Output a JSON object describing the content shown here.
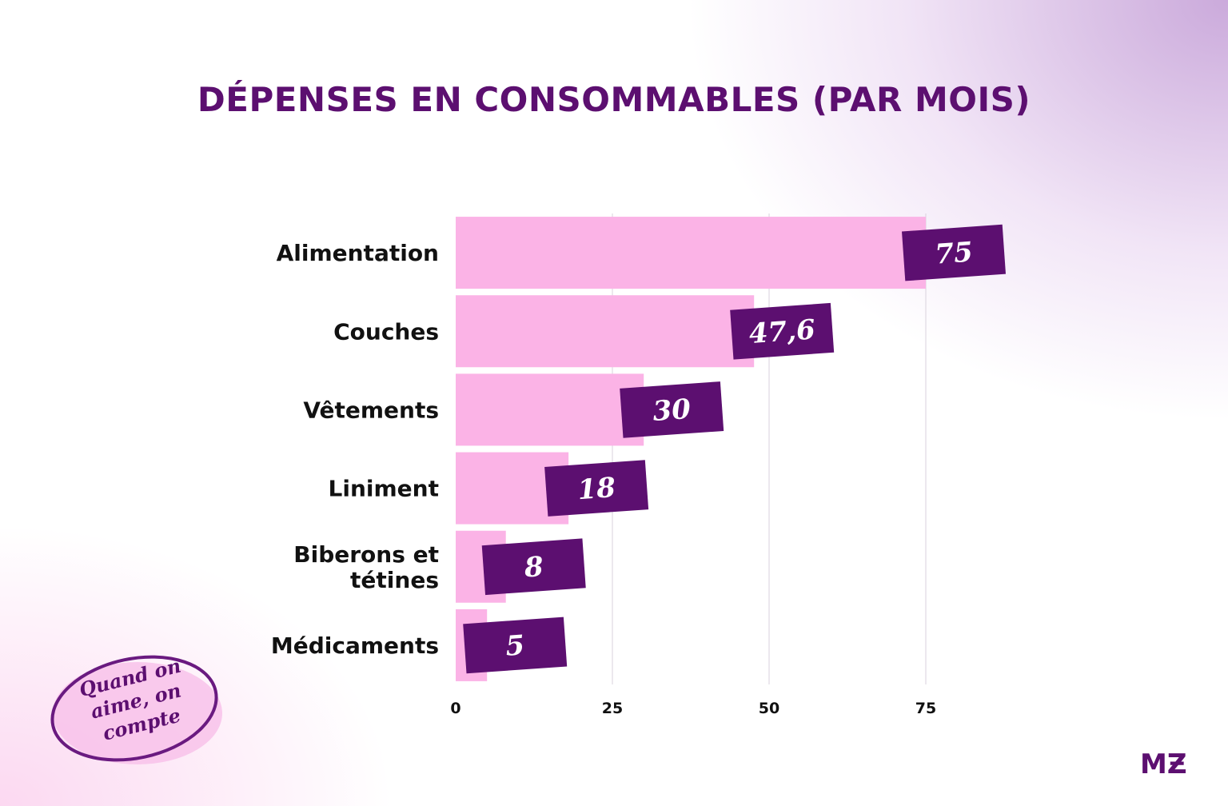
{
  "title": "DÉPENSES EN CONSOMMABLES (PAR MOIS)",
  "colors": {
    "bar": "#fbb3e6",
    "label_bg": "#5c0f70",
    "title": "#5c0f70"
  },
  "chart_data": {
    "type": "bar",
    "orientation": "horizontal",
    "categories": [
      "Alimentation",
      "Couches",
      "Vêtements",
      "Liniment",
      "Biberons et tétines",
      "Médicaments"
    ],
    "category_lines": [
      [
        "Alimentation"
      ],
      [
        "Couches"
      ],
      [
        "Vêtements"
      ],
      [
        "Liniment"
      ],
      [
        "Biberons et",
        "tétines"
      ],
      [
        "Médicaments"
      ]
    ],
    "values": [
      75,
      47.6,
      30,
      18,
      8,
      5
    ],
    "value_labels": [
      "75",
      "47,6",
      "30",
      "18",
      "8",
      "5"
    ],
    "xticks": [
      0,
      25,
      50,
      75
    ],
    "xlim": [
      0,
      75
    ],
    "grid": true
  },
  "stamp": {
    "lines": [
      "Quand on",
      "aime, on",
      "compte"
    ]
  },
  "logo": "M"
}
